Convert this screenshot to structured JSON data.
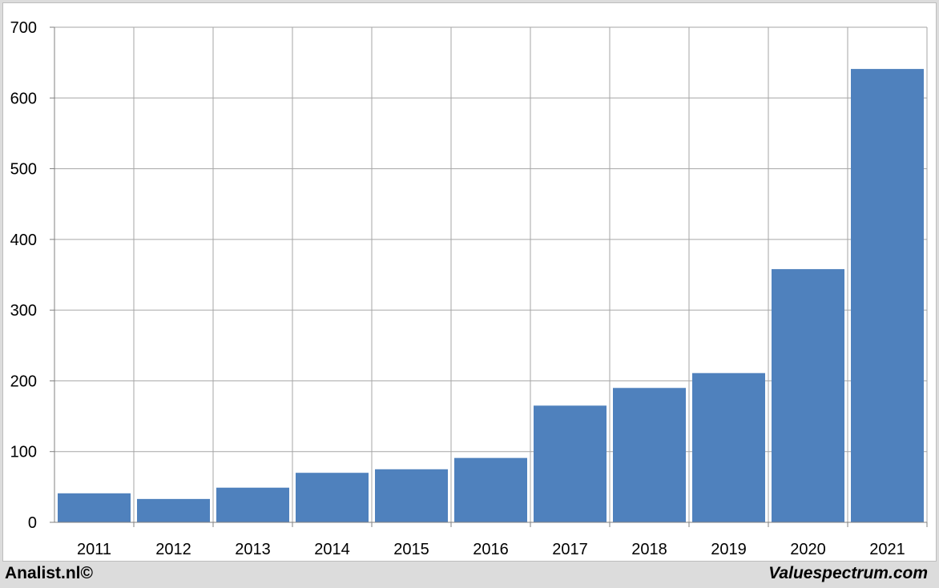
{
  "chart_data": {
    "type": "bar",
    "title": "",
    "xlabel": "",
    "ylabel": "",
    "categories": [
      "2011",
      "2012",
      "2013",
      "2014",
      "2015",
      "2016",
      "2017",
      "2018",
      "2019",
      "2020",
      "2021"
    ],
    "values": [
      41,
      33,
      49,
      70,
      75,
      91,
      165,
      190,
      211,
      358,
      641
    ],
    "ylim": [
      0,
      700
    ],
    "yticks": [
      0,
      100,
      200,
      300,
      400,
      500,
      600,
      700
    ],
    "grid": true,
    "legend": "none",
    "bar_color": "#4f81bd",
    "grid_color": "#a6a6a6"
  },
  "footer": {
    "left": "Analist.nl©",
    "right": "Valuespectrum.com"
  }
}
